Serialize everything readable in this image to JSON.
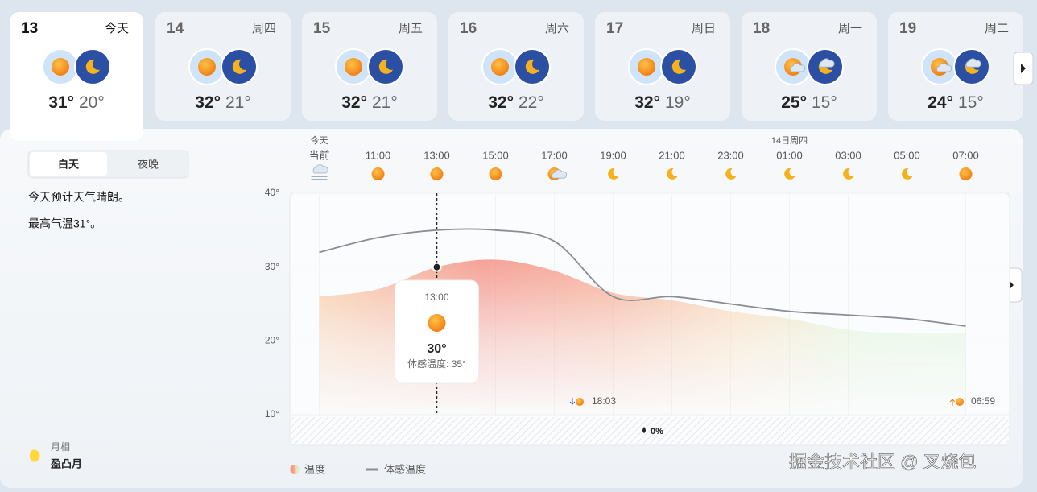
{
  "days": [
    {
      "date": "13",
      "weekday": "今天",
      "high": "31°",
      "low": "20°"
    },
    {
      "date": "14",
      "weekday": "周四",
      "high": "32°",
      "low": "21°"
    },
    {
      "date": "15",
      "weekday": "周五",
      "high": "32°",
      "low": "21°"
    },
    {
      "date": "16",
      "weekday": "周六",
      "high": "32°",
      "low": "22°"
    },
    {
      "date": "17",
      "weekday": "周日",
      "high": "32°",
      "low": "19°"
    },
    {
      "date": "18",
      "weekday": "周一",
      "high": "25°",
      "low": "15°"
    },
    {
      "date": "19",
      "weekday": "周二",
      "high": "24°",
      "low": "15°"
    }
  ],
  "detail": {
    "tabs": [
      "白天",
      "夜晚"
    ],
    "lines": [
      "今天预计天气晴朗。",
      "最高气温31°。"
    ],
    "moon_title": "月相",
    "moon_phase": "盈凸月"
  },
  "chart_data": {
    "type": "line",
    "categories": [
      "当前",
      "11:00",
      "13:00",
      "15:00",
      "17:00",
      "19:00",
      "21:00",
      "23:00",
      "01:00",
      "03:00",
      "05:00",
      "07:00"
    ],
    "date_labels": [
      "今天",
      null,
      null,
      null,
      null,
      null,
      null,
      null,
      "14日周四",
      null,
      null,
      null
    ],
    "ylim": [
      10,
      40
    ],
    "yticks": [
      {
        "value": 10,
        "label": "10°"
      },
      {
        "value": 20,
        "label": "20°"
      },
      {
        "value": 30,
        "label": "30°"
      },
      {
        "value": 40,
        "label": "40°"
      }
    ],
    "grid": true,
    "series": [
      {
        "name": "温度",
        "color": "#f4a090",
        "values": [
          26,
          27,
          30,
          31,
          29.5,
          26.5,
          25.5,
          24,
          23,
          21.5,
          21,
          21
        ]
      },
      {
        "name": "体感温度",
        "color": "#8a8e94",
        "values": [
          32,
          34,
          35,
          35,
          33.5,
          26,
          26,
          25,
          24,
          23.5,
          23,
          22
        ]
      }
    ],
    "tooltip": {
      "time": "13:00",
      "temp": "30°",
      "feels": "体感温度: 35°"
    },
    "sunset": "18:03",
    "sunrise": "06:59",
    "precipitation": "0%"
  },
  "watermark": "掘金技术社区 @ 叉烧包"
}
